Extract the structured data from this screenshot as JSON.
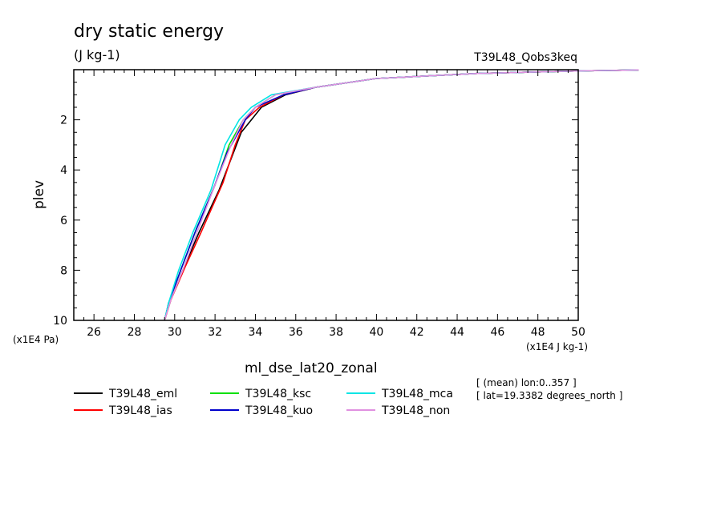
{
  "header": {
    "title": "dry static energy",
    "units": "(J kg-1)",
    "run_label": "T39L48_Qobs3keq"
  },
  "axes": {
    "x_scale_label": "(x1E4 J kg-1)",
    "y_scale_label": "(x1E4 Pa)",
    "xlabel": "ml_dse_lat20_zonal",
    "ylabel": "plev"
  },
  "info": {
    "line1": "[ (mean) lon:0..357 ]",
    "line2": "[ lat=19.3382 degrees_north ]"
  },
  "chart_data": {
    "type": "line",
    "title": "dry static energy",
    "xlabel": "ml_dse_lat20_zonal",
    "ylabel": "plev",
    "xlim": [
      25,
      50
    ],
    "ylim": [
      10,
      0
    ],
    "x_ticks": [
      26,
      28,
      30,
      32,
      34,
      36,
      38,
      40,
      42,
      44,
      46,
      48,
      50
    ],
    "y_ticks": [
      2,
      4,
      6,
      8,
      10
    ],
    "legend_position": "bottom",
    "series": [
      {
        "name": "T39L48_eml",
        "color": "#000000",
        "x": [
          29.5,
          29.8,
          30.4,
          31.2,
          32.2,
          33.3,
          33.8,
          34.3,
          35.5,
          37.0,
          40.0,
          45.0,
          50.0,
          53.0
        ],
        "y": [
          10.0,
          9.2,
          8.0,
          6.5,
          4.8,
          2.5,
          2.0,
          1.5,
          1.0,
          0.7,
          0.35,
          0.15,
          0.05,
          0.01
        ]
      },
      {
        "name": "T39L48_ias",
        "color": "#ff0000",
        "x": [
          29.5,
          29.8,
          30.5,
          31.3,
          32.4,
          33.0,
          33.5,
          34.2,
          35.4,
          37.0,
          40.0,
          45.0,
          50.0,
          53.0
        ],
        "y": [
          10.0,
          9.2,
          7.9,
          6.5,
          4.5,
          3.0,
          2.0,
          1.5,
          1.0,
          0.7,
          0.35,
          0.15,
          0.05,
          0.01
        ]
      },
      {
        "name": "T39L48_ksc",
        "color": "#00e000",
        "x": [
          29.5,
          29.7,
          30.3,
          31.1,
          32.0,
          32.7,
          33.4,
          34.0,
          35.0,
          37.0,
          40.0,
          45.0,
          50.0,
          53.0
        ],
        "y": [
          10.0,
          9.3,
          8.0,
          6.3,
          4.6,
          3.0,
          2.0,
          1.5,
          1.0,
          0.7,
          0.35,
          0.15,
          0.05,
          0.01
        ]
      },
      {
        "name": "T39L48_kuo",
        "color": "#0000cc",
        "x": [
          29.5,
          29.7,
          30.3,
          31.0,
          31.9,
          32.6,
          33.5,
          34.0,
          35.4,
          37.0,
          40.0,
          45.0,
          50.0,
          53.0
        ],
        "y": [
          10.0,
          9.3,
          8.0,
          6.5,
          4.8,
          3.3,
          2.0,
          1.5,
          1.0,
          0.7,
          0.35,
          0.15,
          0.05,
          0.01
        ]
      },
      {
        "name": "T39L48_mca",
        "color": "#00e5e5",
        "x": [
          29.5,
          29.7,
          30.2,
          30.9,
          31.8,
          32.5,
          33.2,
          33.8,
          34.8,
          37.0,
          40.0,
          45.0,
          50.0,
          53.0
        ],
        "y": [
          10.0,
          9.3,
          8.0,
          6.5,
          4.8,
          3.0,
          2.0,
          1.5,
          1.0,
          0.7,
          0.35,
          0.15,
          0.05,
          0.01
        ]
      },
      {
        "name": "T39L48_non",
        "color": "#e090e0",
        "x": [
          29.5,
          29.8,
          30.4,
          31.1,
          32.0,
          32.8,
          33.4,
          34.0,
          35.0,
          37.0,
          40.0,
          45.0,
          50.0,
          53.0
        ],
        "y": [
          10.0,
          9.2,
          8.0,
          6.5,
          4.6,
          3.0,
          2.0,
          1.5,
          1.0,
          0.7,
          0.35,
          0.15,
          0.05,
          0.01
        ]
      }
    ]
  }
}
